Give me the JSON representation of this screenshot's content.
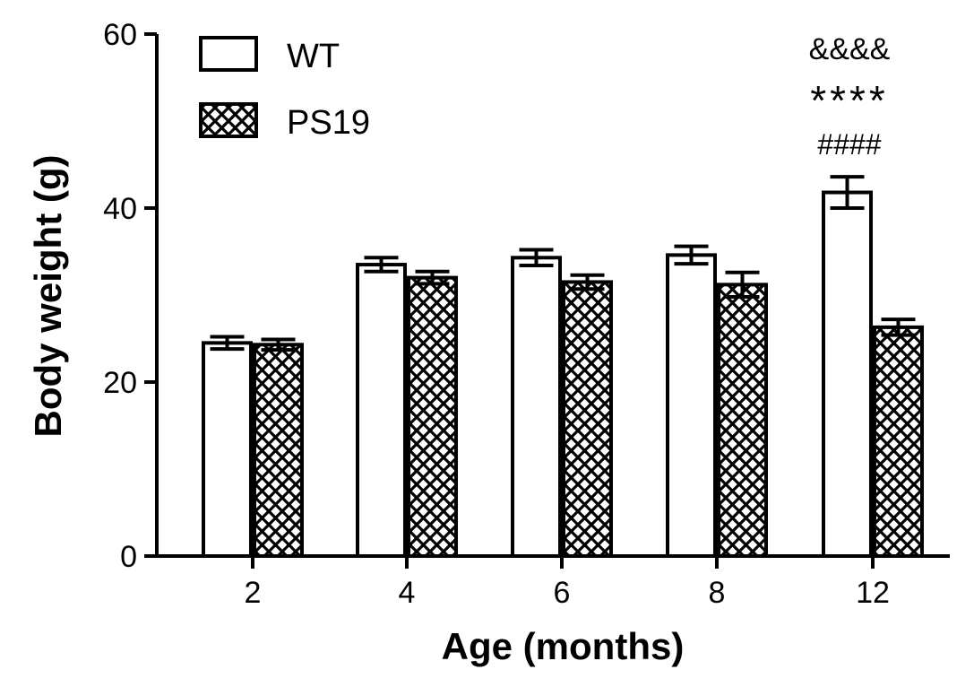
{
  "chart_data": {
    "type": "bar",
    "title": "",
    "xlabel": "Age (months)",
    "ylabel": "Body weight (g)",
    "categories": [
      "2",
      "4",
      "6",
      "8",
      "12"
    ],
    "ylim": [
      0,
      60
    ],
    "yticks": [
      "0",
      "20",
      "40",
      "60"
    ],
    "error_bars": true,
    "legend_position": "top-left",
    "series": [
      {
        "name": "WT",
        "fill": "white",
        "values": [
          24.5,
          33.5,
          34.3,
          34.6,
          41.8
        ],
        "errors": [
          0.7,
          0.8,
          0.9,
          1.0,
          1.8
        ]
      },
      {
        "name": "PS19",
        "fill": "crosshatch",
        "values": [
          24.3,
          32.0,
          31.5,
          31.2,
          26.3
        ],
        "errors": [
          0.6,
          0.7,
          0.8,
          1.4,
          0.9
        ]
      }
    ],
    "annotations": {
      "category": "12",
      "lines": [
        "&&&&",
        "****",
        "####"
      ]
    }
  }
}
